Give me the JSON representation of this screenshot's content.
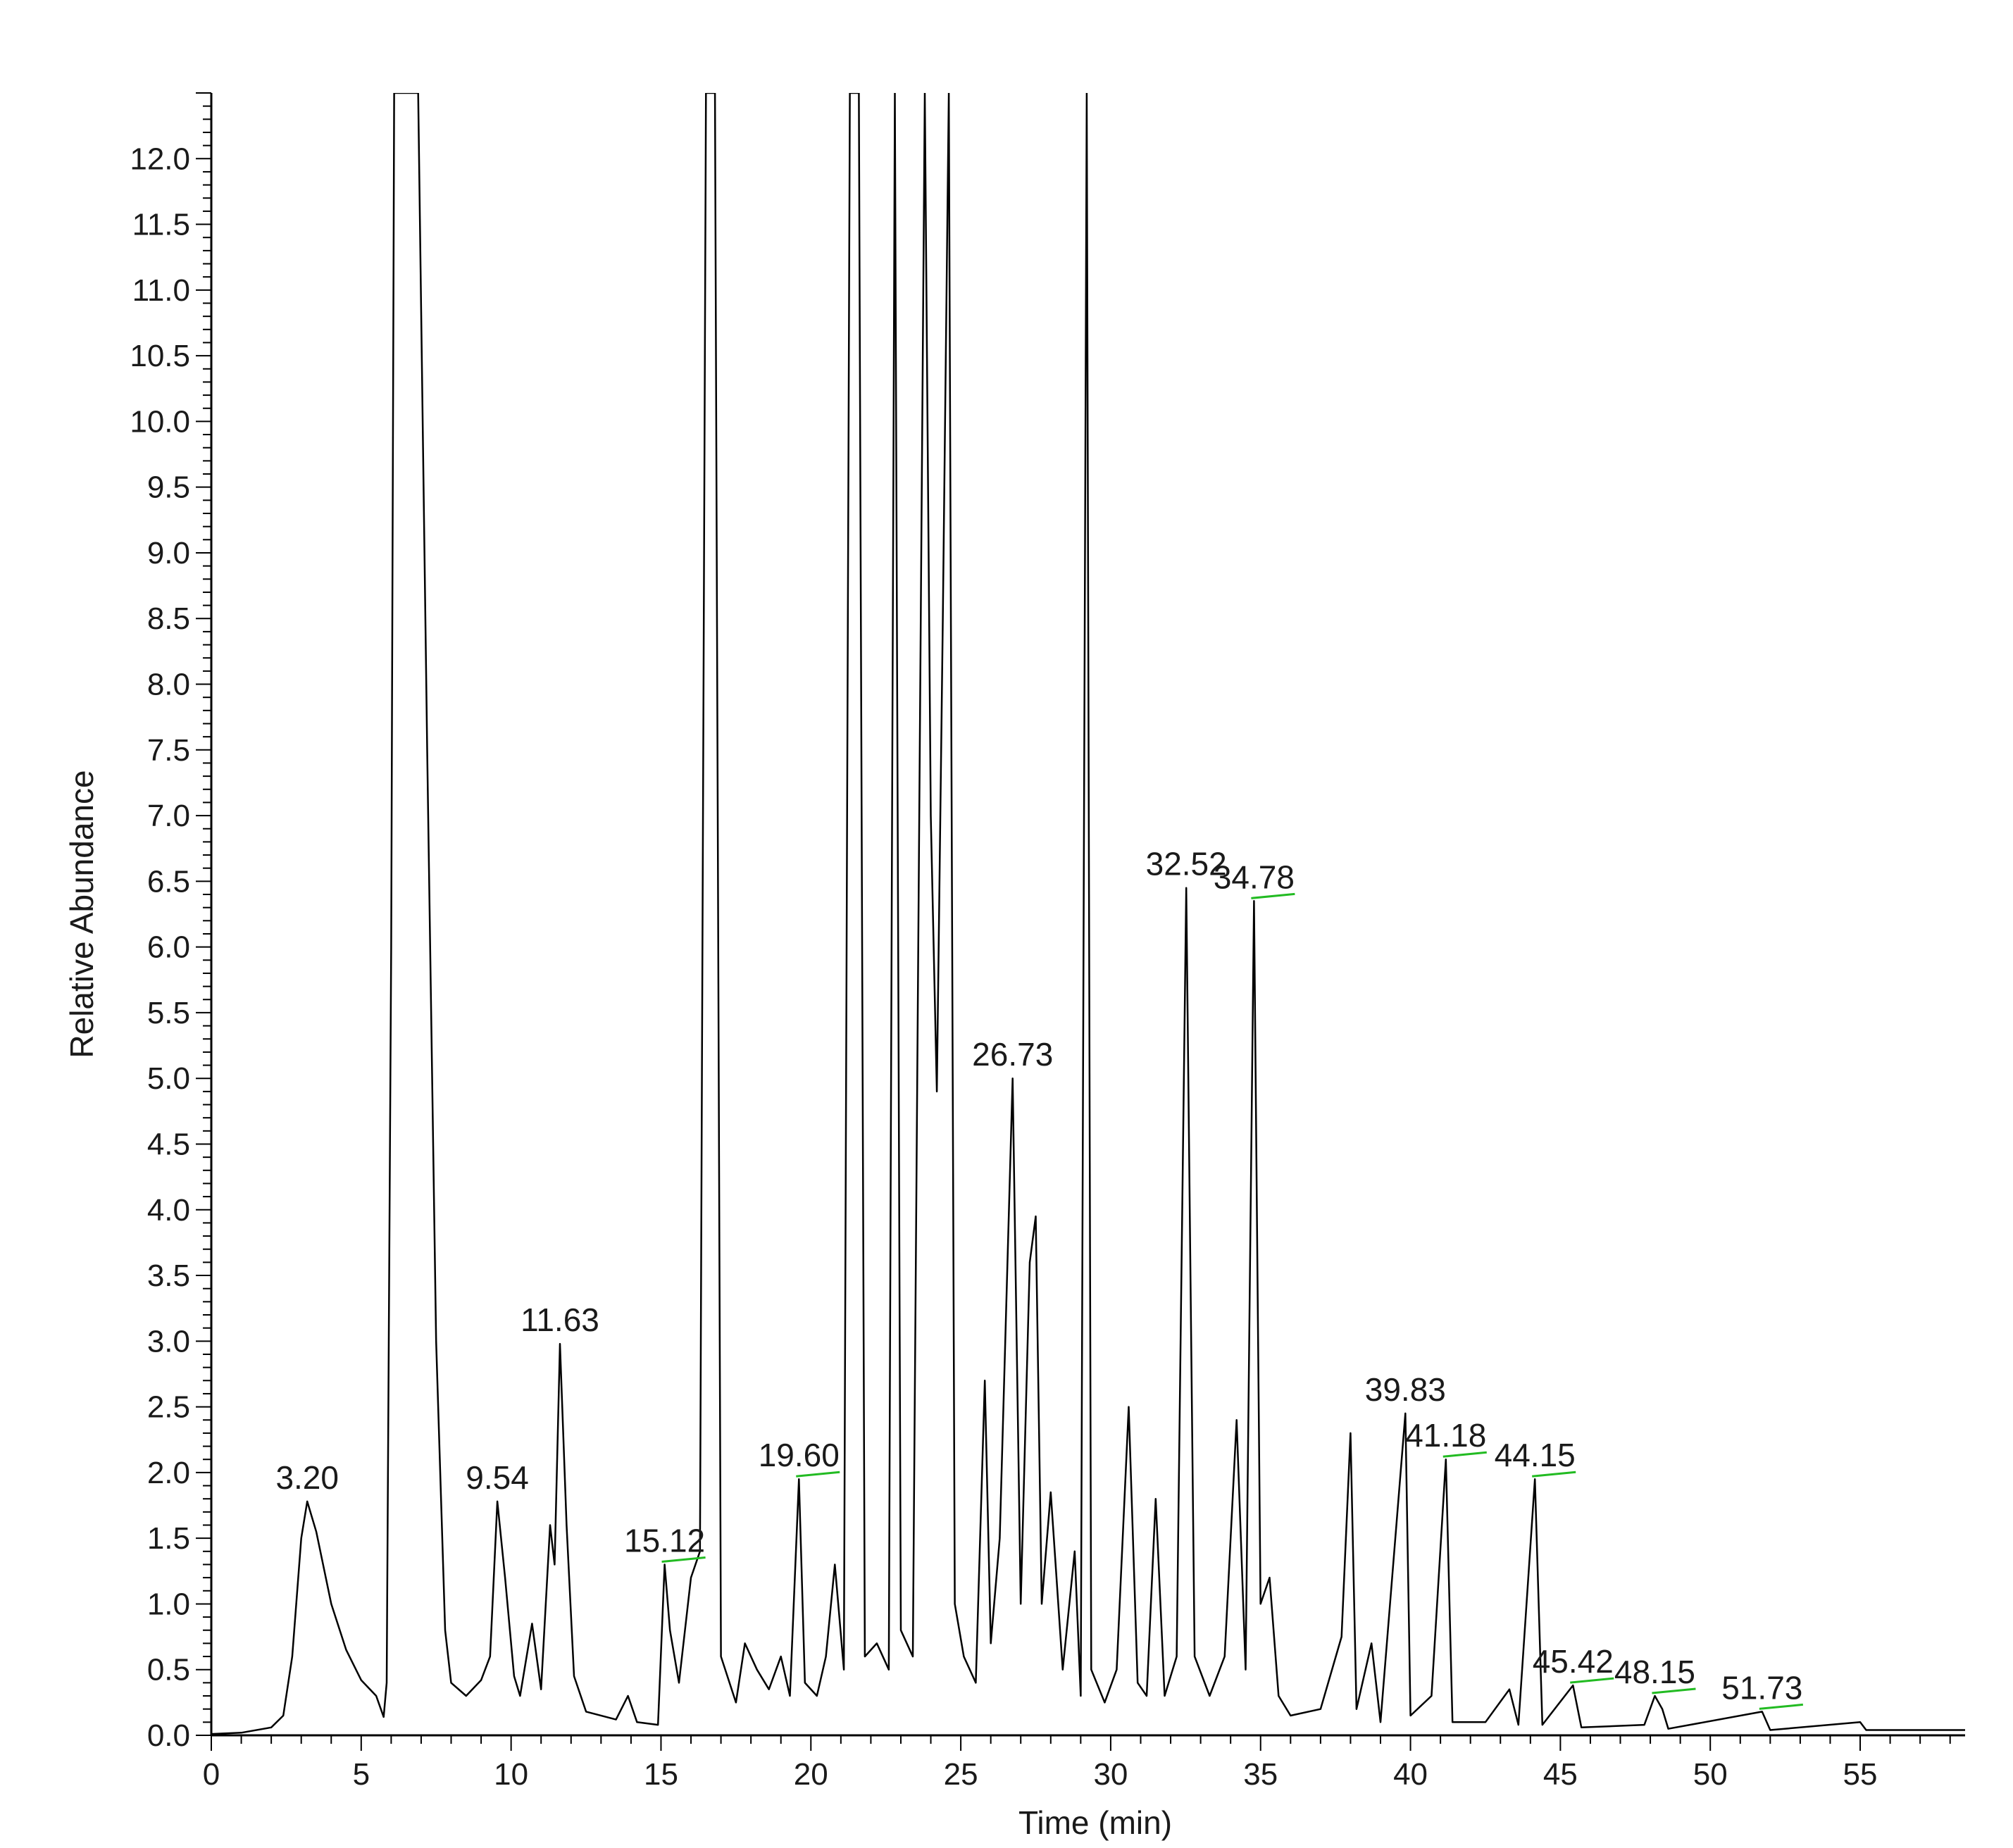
{
  "chart_data": {
    "type": "line",
    "xlabel": "Time (min)",
    "ylabel": "Relative Abundance",
    "xlim": [
      0,
      58.5
    ],
    "ylim": [
      0,
      12.5
    ],
    "x_ticks": [
      0,
      5,
      10,
      15,
      20,
      25,
      30,
      35,
      40,
      45,
      50,
      55
    ],
    "y_ticks": [
      0.0,
      0.5,
      1.0,
      1.5,
      2.0,
      2.5,
      3.0,
      3.5,
      4.0,
      4.5,
      5.0,
      5.5,
      6.0,
      6.5,
      7.0,
      7.5,
      8.0,
      8.5,
      9.0,
      9.5,
      10.0,
      10.5,
      11.0,
      11.5,
      12.0
    ],
    "y_tick_labels": [
      "0.0",
      "0.5",
      "1.0",
      "1.5",
      "2.0",
      "2.5",
      "3.0",
      "3.5",
      "4.0",
      "4.5",
      "5.0",
      "5.5",
      "6.0",
      "6.5",
      "7.0",
      "7.5",
      "8.0",
      "8.5",
      "9.0",
      "9.5",
      "10.0",
      "10.5",
      "11.0",
      "11.5",
      "12.0"
    ],
    "grid": false,
    "line_color": "#000000",
    "baseline_marker_color": "#22bb22",
    "baseline": [
      [
        0,
        0.01
      ],
      [
        1,
        0.02
      ],
      [
        2,
        0.06
      ],
      [
        2.4,
        0.15
      ],
      [
        2.7,
        0.6
      ],
      [
        3.0,
        1.5
      ],
      [
        3.2,
        1.78
      ],
      [
        3.5,
        1.55
      ],
      [
        4.0,
        1.0
      ],
      [
        4.5,
        0.65
      ],
      [
        5.0,
        0.42
      ],
      [
        5.5,
        0.3
      ],
      [
        5.75,
        0.14
      ],
      [
        5.85,
        0.4
      ],
      [
        6.0,
        6.0
      ],
      [
        6.1,
        12.5
      ],
      [
        6.9,
        12.5
      ],
      [
        7.2,
        7.5
      ],
      [
        7.5,
        3.0
      ],
      [
        7.8,
        0.8
      ],
      [
        8.0,
        0.4
      ],
      [
        8.5,
        0.3
      ],
      [
        9.0,
        0.42
      ],
      [
        9.3,
        0.6
      ],
      [
        9.54,
        1.78
      ],
      [
        9.8,
        1.2
      ],
      [
        10.1,
        0.45
      ],
      [
        10.3,
        0.3
      ],
      [
        10.7,
        0.85
      ],
      [
        11.0,
        0.35
      ],
      [
        11.3,
        1.6
      ],
      [
        11.45,
        1.3
      ],
      [
        11.63,
        2.98
      ],
      [
        11.85,
        1.6
      ],
      [
        12.1,
        0.45
      ],
      [
        12.5,
        0.18
      ],
      [
        13.5,
        0.12
      ],
      [
        13.9,
        0.3
      ],
      [
        14.2,
        0.1
      ],
      [
        14.9,
        0.08
      ],
      [
        15.12,
        1.3
      ],
      [
        15.3,
        0.8
      ],
      [
        15.6,
        0.4
      ],
      [
        16.0,
        1.2
      ],
      [
        16.3,
        1.4
      ],
      [
        16.5,
        12.5
      ],
      [
        16.8,
        12.5
      ],
      [
        17.0,
        0.6
      ],
      [
        17.5,
        0.25
      ],
      [
        17.8,
        0.7
      ],
      [
        18.2,
        0.5
      ],
      [
        18.6,
        0.35
      ],
      [
        19.0,
        0.6
      ],
      [
        19.3,
        0.3
      ],
      [
        19.6,
        1.95
      ],
      [
        19.8,
        0.4
      ],
      [
        20.2,
        0.3
      ],
      [
        20.5,
        0.6
      ],
      [
        20.8,
        1.3
      ],
      [
        21.1,
        0.5
      ],
      [
        21.3,
        12.5
      ],
      [
        21.6,
        12.5
      ],
      [
        21.8,
        0.6
      ],
      [
        22.2,
        0.7
      ],
      [
        22.6,
        0.5
      ],
      [
        22.8,
        12.5
      ],
      [
        23.0,
        0.8
      ],
      [
        23.4,
        0.6
      ],
      [
        23.8,
        12.5
      ],
      [
        24.0,
        7.0
      ],
      [
        24.2,
        4.9
      ],
      [
        24.4,
        8.5
      ],
      [
        24.6,
        12.5
      ],
      [
        24.8,
        1.0
      ],
      [
        25.1,
        0.6
      ],
      [
        25.5,
        0.4
      ],
      [
        25.8,
        2.7
      ],
      [
        26.0,
        0.7
      ],
      [
        26.3,
        1.5
      ],
      [
        26.73,
        5.0
      ],
      [
        27.0,
        1.0
      ],
      [
        27.3,
        3.6
      ],
      [
        27.5,
        3.95
      ],
      [
        27.7,
        1.0
      ],
      [
        28.0,
        1.85
      ],
      [
        28.4,
        0.5
      ],
      [
        28.8,
        1.4
      ],
      [
        29.0,
        0.3
      ],
      [
        29.2,
        12.5
      ],
      [
        29.35,
        0.5
      ],
      [
        29.8,
        0.25
      ],
      [
        30.2,
        0.5
      ],
      [
        30.6,
        2.5
      ],
      [
        30.9,
        0.4
      ],
      [
        31.2,
        0.3
      ],
      [
        31.5,
        1.8
      ],
      [
        31.8,
        0.3
      ],
      [
        32.2,
        0.6
      ],
      [
        32.52,
        6.45
      ],
      [
        32.8,
        0.6
      ],
      [
        33.3,
        0.3
      ],
      [
        33.8,
        0.6
      ],
      [
        34.2,
        2.4
      ],
      [
        34.5,
        0.5
      ],
      [
        34.78,
        6.35
      ],
      [
        35.0,
        1.0
      ],
      [
        35.3,
        1.2
      ],
      [
        35.6,
        0.3
      ],
      [
        36.0,
        0.15
      ],
      [
        37.0,
        0.2
      ],
      [
        37.7,
        0.75
      ],
      [
        38.0,
        2.3
      ],
      [
        38.2,
        0.2
      ],
      [
        38.7,
        0.7
      ],
      [
        39.0,
        0.1
      ],
      [
        39.83,
        2.45
      ],
      [
        40.0,
        0.15
      ],
      [
        40.7,
        0.3
      ],
      [
        41.18,
        2.1
      ],
      [
        41.4,
        0.1
      ],
      [
        42.5,
        0.1
      ],
      [
        43.3,
        0.35
      ],
      [
        43.6,
        0.08
      ],
      [
        44.15,
        1.95
      ],
      [
        44.4,
        0.08
      ],
      [
        45.42,
        0.38
      ],
      [
        45.7,
        0.06
      ],
      [
        47.8,
        0.08
      ],
      [
        48.15,
        0.3
      ],
      [
        48.4,
        0.2
      ],
      [
        48.6,
        0.05
      ],
      [
        51.73,
        0.18
      ],
      [
        52.0,
        0.04
      ],
      [
        55.0,
        0.1
      ],
      [
        55.2,
        0.04
      ],
      [
        58.5,
        0.04
      ]
    ],
    "peaks": [
      {
        "label": "3.20",
        "x": 3.2,
        "y": 1.78,
        "baseline_marker": false
      },
      {
        "label": "9.54",
        "x": 9.54,
        "y": 1.78,
        "baseline_marker": false
      },
      {
        "label": "11.63",
        "x": 11.63,
        "y": 2.98,
        "baseline_marker": false
      },
      {
        "label": "15.12",
        "x": 15.12,
        "y": 1.3,
        "baseline_marker": true
      },
      {
        "label": "19.60",
        "x": 19.6,
        "y": 1.95,
        "baseline_marker": true
      },
      {
        "label": "26.73",
        "x": 26.73,
        "y": 5.0,
        "baseline_marker": false
      },
      {
        "label": "32.52",
        "x": 32.52,
        "y": 6.45,
        "baseline_marker": false
      },
      {
        "label": "34.78",
        "x": 34.78,
        "y": 6.35,
        "baseline_marker": true
      },
      {
        "label": "39.83",
        "x": 39.83,
        "y": 2.45,
        "baseline_marker": false
      },
      {
        "label": "41.18",
        "x": 41.18,
        "y": 2.1,
        "baseline_marker": true
      },
      {
        "label": "44.15",
        "x": 44.15,
        "y": 1.95,
        "baseline_marker": true
      },
      {
        "label": "45.42",
        "x": 45.42,
        "y": 0.38,
        "baseline_marker": true
      },
      {
        "label": "48.15",
        "x": 48.15,
        "y": 0.3,
        "baseline_marker": true
      },
      {
        "label": "51.73",
        "x": 51.73,
        "y": 0.18,
        "baseline_marker": true
      }
    ]
  }
}
